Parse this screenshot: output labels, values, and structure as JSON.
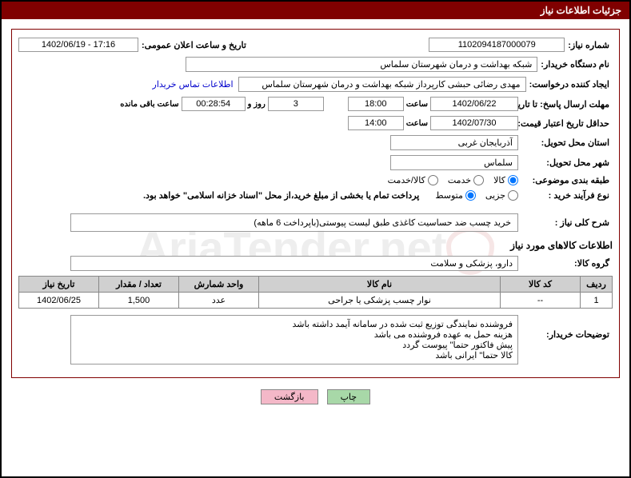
{
  "header": {
    "title": "جزئیات اطلاعات نیاز"
  },
  "fields": {
    "need_no_label": "شماره نیاز:",
    "need_no": "1102094187000079",
    "announce_dt_label": "تاریخ و ساعت اعلان عمومی:",
    "announce_dt": "1402/06/19 - 17:16",
    "buyer_org_label": "نام دستگاه خریدار:",
    "buyer_org": "شبکه بهداشت و درمان  شهرستان سلماس",
    "requester_label": "ایجاد کننده درخواست:",
    "requester": "مهدی رضائی حبشی کارپرداز شبکه بهداشت و درمان  شهرستان سلماس",
    "contact_link": "اطلاعات تماس خریدار",
    "reply_deadline_label": "مهلت ارسال پاسخ: تا تاریخ:",
    "reply_date": "1402/06/22",
    "time_label": "ساعت",
    "reply_time": "18:00",
    "days": "3",
    "days_and": "روز و",
    "countdown": "00:28:54",
    "remain_label": "ساعت باقی مانده",
    "validity_label": "حداقل تاریخ اعتبار قیمت: تا تاریخ:",
    "validity_date": "1402/07/30",
    "validity_time": "14:00",
    "province_label": "استان محل تحویل:",
    "province": "آذربایجان غربی",
    "city_label": "شهر محل تحویل:",
    "city": "سلماس",
    "subject_class_label": "طبقه بندی موضوعی:",
    "radio_kala": "کالا",
    "radio_khedmat": "خدمت",
    "radio_kalakhedmat": "کالا/خدمت",
    "purchase_type_label": "نوع فرآیند خرید :",
    "radio_jozi": "جزیی",
    "radio_motavaset": "متوسط",
    "payment_note": "پرداخت تمام یا بخشی از مبلغ خرید،از محل \"اسناد خزانه اسلامی\" خواهد بود.",
    "general_desc_label": "شرح کلی نیاز :",
    "general_desc": "خرید چسب ضد حساسیت کاغذی طبق لیست پیوستی(باپرداخت 6 ماهه)",
    "goods_info_title": "اطلاعات کالاهای مورد نیاز",
    "goods_group_label": "گروه کالا:",
    "goods_group": "دارو، پزشکی و سلامت",
    "buyer_notes_label": "توضیحات خریدار:",
    "buyer_notes": "فروشنده نمایندگی توزیع ثبت شده در سامانه آیمد داشته باشد\nهزینه حمل به عهده فروشنده می باشد\nپیش فاکتور حتما\" پیوست گردد\nکالا حتما\" ایرانی باشد"
  },
  "radios": {
    "subject": "kala",
    "purchase": "motavaset"
  },
  "table": {
    "headers": {
      "row": "ردیف",
      "code": "کد کالا",
      "name": "نام کالا",
      "unit": "واحد شمارش",
      "qty": "تعداد / مقدار",
      "need_date": "تاریخ نیاز"
    },
    "rows": [
      {
        "row": "1",
        "code": "--",
        "name": "نوار چسب پزشکی یا جراحی",
        "unit": "عدد",
        "qty": "1,500",
        "need_date": "1402/06/25"
      }
    ]
  },
  "buttons": {
    "print": "چاپ",
    "back": "بازگشت"
  },
  "watermark_text": "AriaTender.net",
  "colors": {
    "brand": "#800000",
    "border": "#999999",
    "th_bg": "#d0d0d0",
    "btn_print": "#a8d8a8",
    "btn_back": "#f4b8c8"
  }
}
